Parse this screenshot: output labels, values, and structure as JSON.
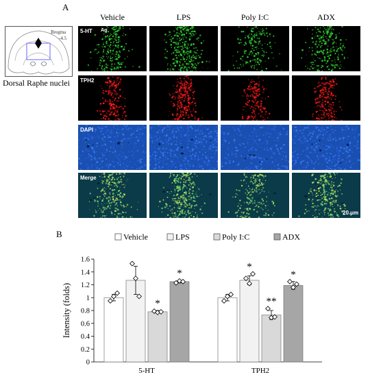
{
  "panel_a_label": "A",
  "panel_b_label": "B",
  "columns": [
    "Vehicle",
    "LPS",
    "Poly I:C",
    "ADX"
  ],
  "rows": [
    {
      "label": "5-HT",
      "channel": "green"
    },
    {
      "label": "TPH2",
      "channel": "red"
    },
    {
      "label": "DAPI",
      "channel": "blue"
    },
    {
      "label": "Merge",
      "channel": "merge"
    }
  ],
  "aq_label": "Aq",
  "atlas": {
    "bregma_label": "Bregma",
    "bregma_value": "-4.5"
  },
  "region_label": "Dorsal Raphe nuclei",
  "scale_bar_label": "20 μm",
  "chart_data": {
    "type": "bar",
    "categories": [
      "5-HT",
      "TPH2"
    ],
    "ylabel": "Intensity (folds)",
    "xlabel": "",
    "ylim": [
      0,
      1.6
    ],
    "yticks": [
      0,
      0.2,
      0.4,
      0.6,
      0.8,
      1,
      1.2,
      1.4,
      1.6
    ],
    "ytick_labels": [
      "0",
      "0.2",
      "0.4",
      "0.6",
      "0.8",
      "1",
      "1.2",
      "1.4",
      "1.6"
    ],
    "legend_position": "top",
    "series": [
      {
        "name": "Vehicle",
        "color": "#ffffff",
        "values": [
          1.0,
          1.0
        ],
        "errors": [
          0.05,
          0.05
        ],
        "points": [
          [
            0.95,
            1.02,
            1.07
          ],
          [
            0.95,
            1.02,
            1.05
          ]
        ],
        "significance": [
          "",
          ""
        ]
      },
      {
        "name": "LPS",
        "color": "#f2f2f2",
        "values": [
          1.27,
          1.27
        ],
        "errors": [
          0.22,
          0.07
        ],
        "points": [
          [
            1.53,
            1.3,
            1.02
          ],
          [
            1.3,
            1.22,
            1.37
          ]
        ],
        "significance": [
          "",
          "*"
        ]
      },
      {
        "name": "Poly I:C",
        "color": "#d9d9d9",
        "values": [
          0.78,
          0.73
        ],
        "errors": [
          0.02,
          0.07
        ],
        "points": [
          [
            0.79,
            0.77,
            0.78
          ],
          [
            0.83,
            0.69,
            0.7
          ]
        ],
        "significance": [
          "*",
          "**"
        ]
      },
      {
        "name": "ADX",
        "color": "#a6a6a6",
        "values": [
          1.25,
          1.19
        ],
        "errors": [
          0.02,
          0.06
        ],
        "points": [
          [
            1.23,
            1.26,
            1.25
          ],
          [
            1.25,
            1.16,
            1.21
          ]
        ],
        "significance": [
          "*",
          "*"
        ]
      }
    ]
  }
}
